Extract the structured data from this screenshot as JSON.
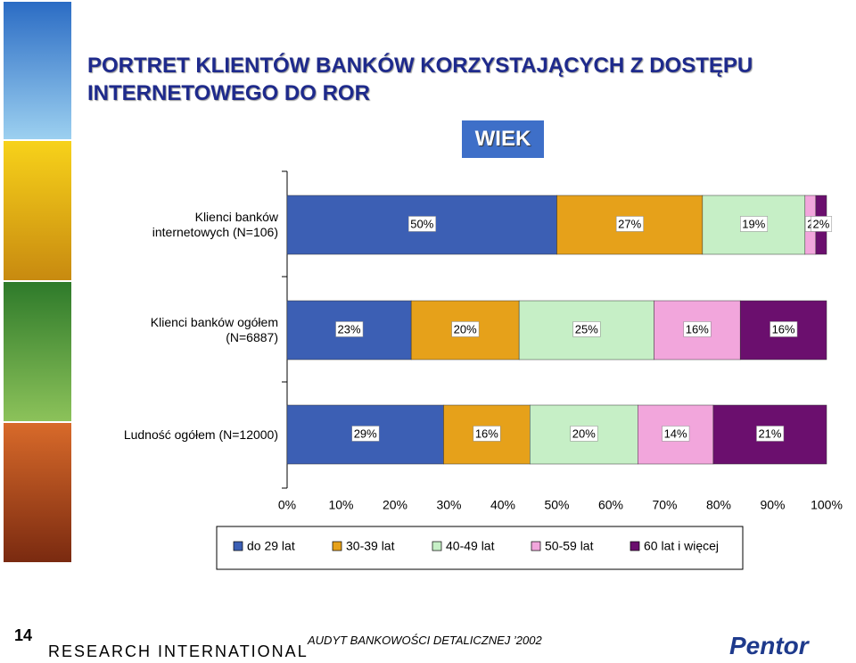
{
  "chart_data": {
    "type": "stacked-bar-horizontal",
    "title": "PORTRET KLIENTÓW BANKÓW KORZYSTAJĄCYCH Z DOSTĘPU INTERNETOWEGO DO ROR",
    "subtitle": "WIEK",
    "categories": [
      "Klienci banków\ninternetowych (N=106)",
      "Klienci banków ogółem\n(N=6887)",
      "Ludność ogółem (N=12000)"
    ],
    "series": [
      {
        "name": "do 29 lat",
        "color": "#3c5fb4",
        "values": [
          50,
          23,
          29
        ],
        "value_labels": [
          "50%",
          "23%",
          "29%"
        ]
      },
      {
        "name": "30-39 lat",
        "color": "#e6a11a",
        "values": [
          27,
          20,
          16
        ],
        "value_labels": [
          "27%",
          "20%",
          "16%"
        ]
      },
      {
        "name": "40-49 lat",
        "color": "#c6efc6",
        "values": [
          19,
          25,
          20
        ],
        "value_labels": [
          "19%",
          "25%",
          "20%"
        ]
      },
      {
        "name": "50-59 lat",
        "color": "#f2a6dc",
        "values": [
          2,
          16,
          14
        ],
        "value_labels": [
          "2",
          "16%",
          "14%"
        ]
      },
      {
        "name": "60 lat i więcej",
        "color": "#6b0f6e",
        "values": [
          2,
          16,
          21
        ],
        "value_labels": [
          "2%",
          "16%",
          "21%"
        ]
      }
    ],
    "xlim": [
      0,
      100
    ],
    "xticks": [
      {
        "value": 0,
        "label": "0%"
      },
      {
        "value": 10,
        "label": "10%"
      },
      {
        "value": 20,
        "label": "20%"
      },
      {
        "value": 30,
        "label": "30%"
      },
      {
        "value": 40,
        "label": "40%"
      },
      {
        "value": 50,
        "label": "50%"
      },
      {
        "value": 60,
        "label": "60%"
      },
      {
        "value": 70,
        "label": "70%"
      },
      {
        "value": 80,
        "label": "80%"
      },
      {
        "value": 90,
        "label": "90%"
      },
      {
        "value": 100,
        "label": "100%"
      }
    ],
    "legend": "bottom"
  },
  "footer": {
    "page_number": "14",
    "company": "RESEARCH INTERNATIONAL",
    "report": "AUDYT BANKOWOŚCI DETALICZNEJ ’2002",
    "logo": "Pentor"
  }
}
